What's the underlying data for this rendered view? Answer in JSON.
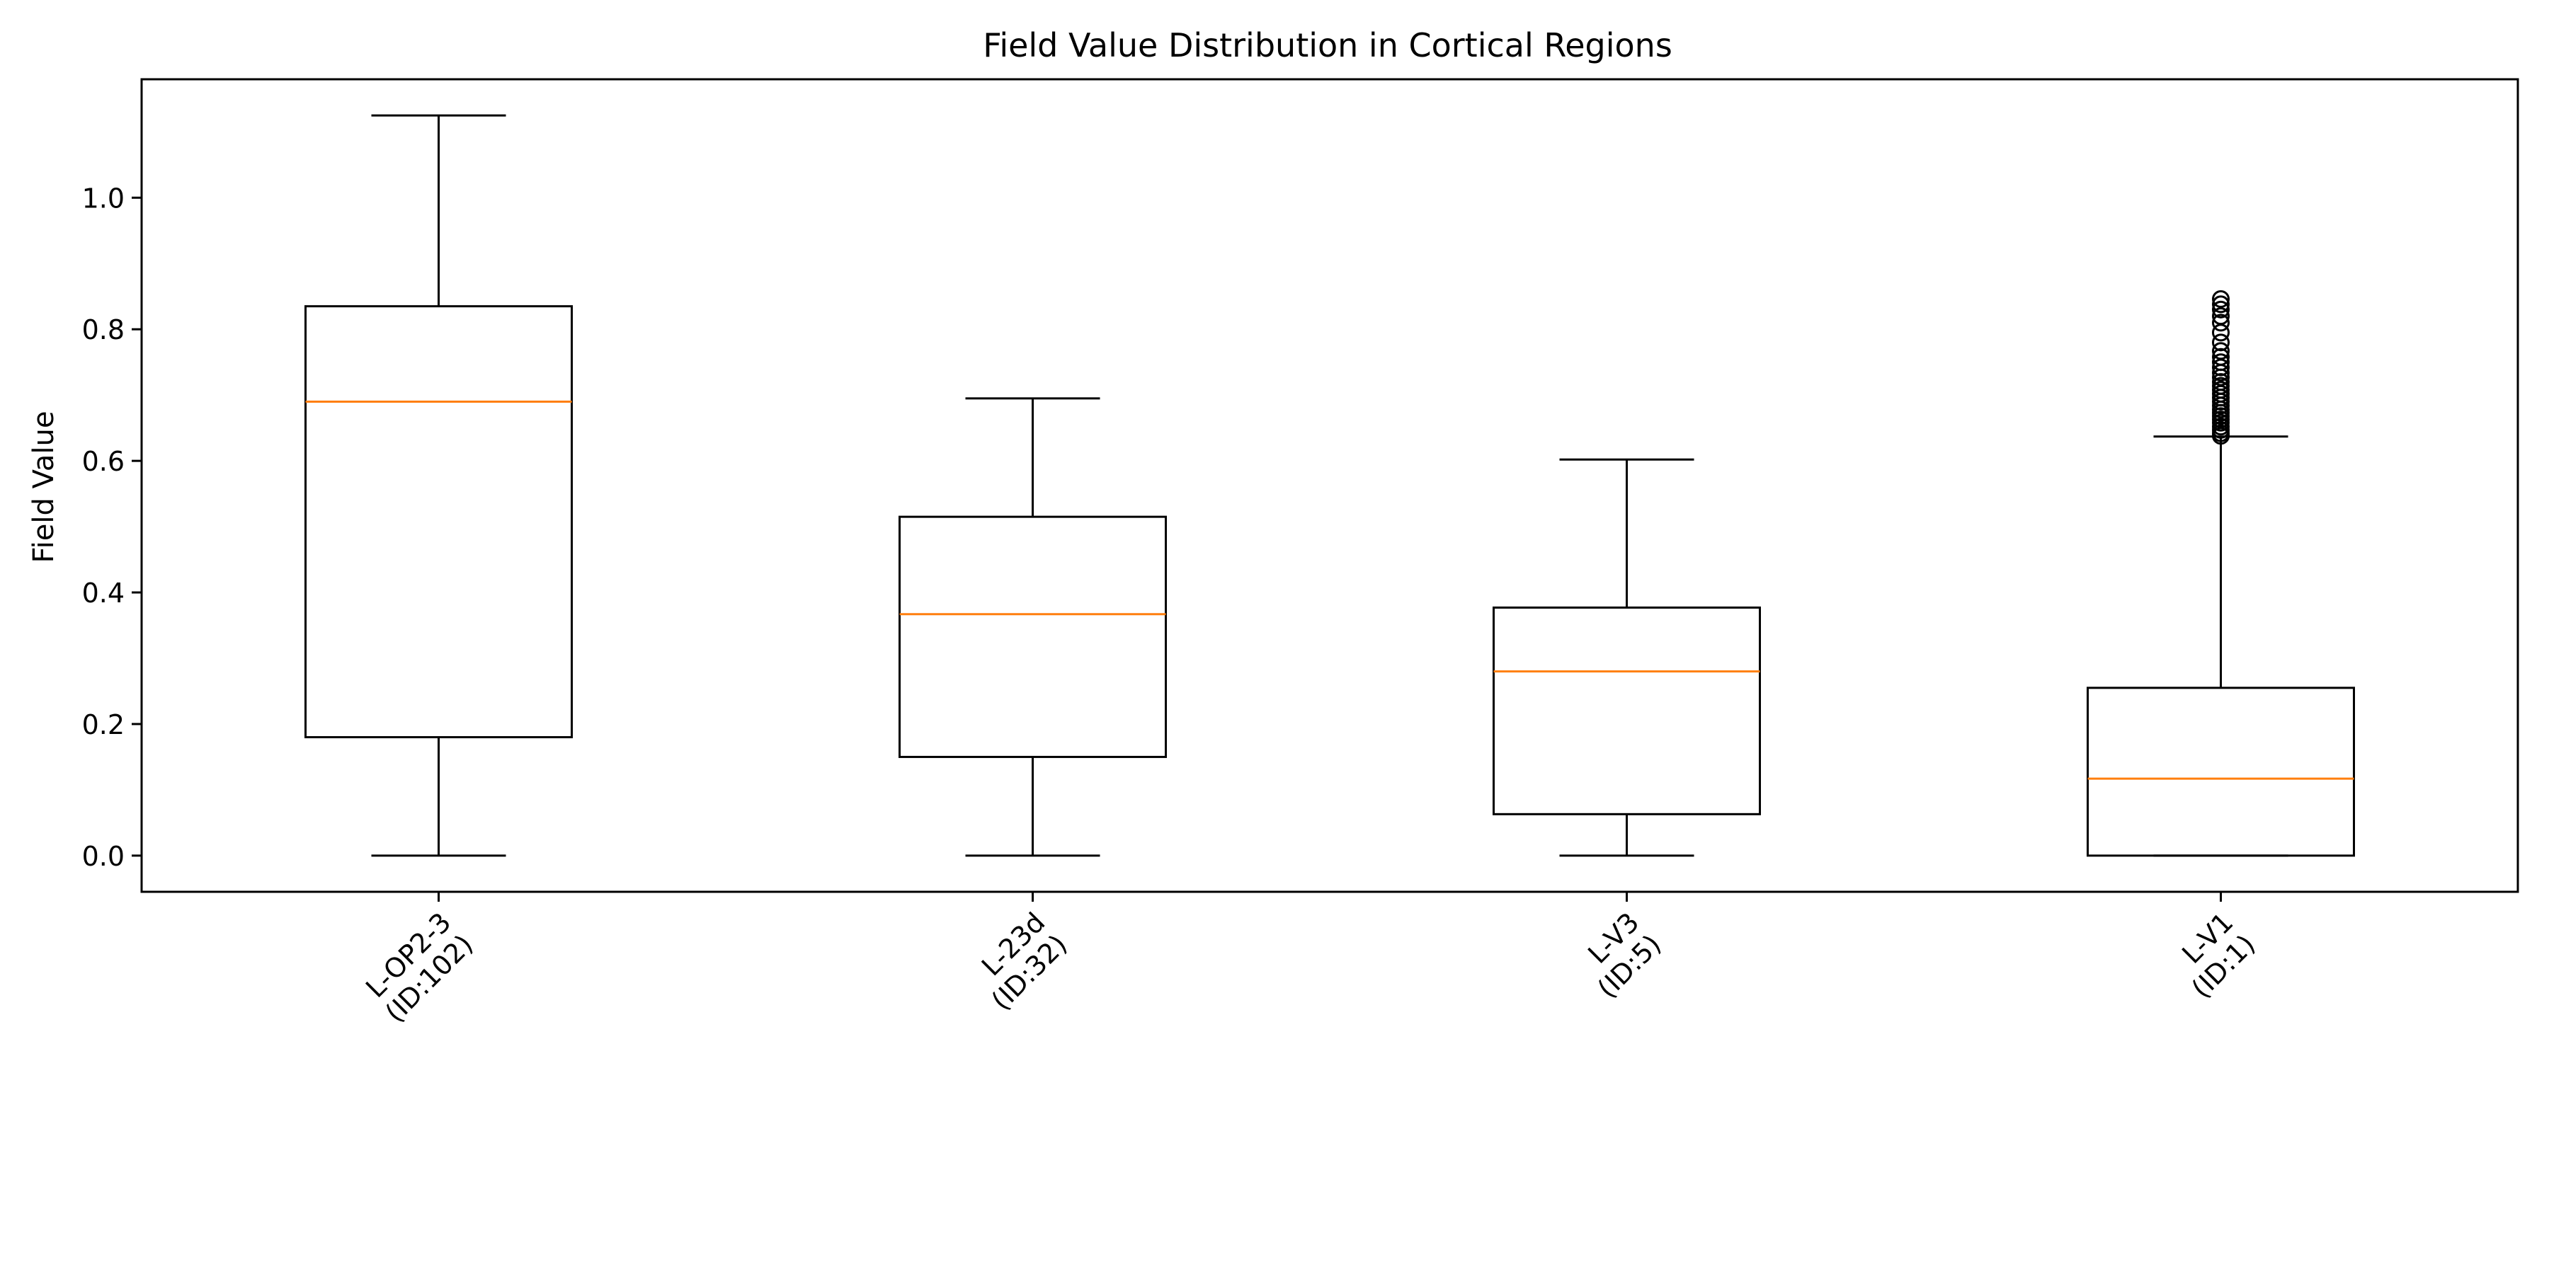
{
  "chart_data": {
    "type": "box",
    "title": "Field Value Distribution in Cortical Regions",
    "xlabel": "",
    "ylabel": "Field Value",
    "ylim": [
      -0.055,
      1.18
    ],
    "yticks": [
      0.0,
      0.2,
      0.4,
      0.6,
      0.8,
      1.0
    ],
    "ytick_labels": [
      "0.0",
      "0.2",
      "0.4",
      "0.6",
      "0.8",
      "1.0"
    ],
    "grid": false,
    "categories": [
      {
        "line1": "L-OP2-3",
        "line2": "(ID:102)"
      },
      {
        "line1": "L-23d",
        "line2": "(ID:32)"
      },
      {
        "line1": "L-V3",
        "line2": "(ID:5)"
      },
      {
        "line1": "L-V1",
        "line2": "(ID:1)"
      }
    ],
    "boxes": [
      {
        "whisker_low": 0.0,
        "q1": 0.18,
        "median": 0.69,
        "q3": 0.835,
        "whisker_high": 1.125,
        "outliers": []
      },
      {
        "whisker_low": 0.0,
        "q1": 0.15,
        "median": 0.367,
        "q3": 0.515,
        "whisker_high": 0.695,
        "outliers": []
      },
      {
        "whisker_low": 0.0,
        "q1": 0.063,
        "median": 0.28,
        "q3": 0.377,
        "whisker_high": 0.602,
        "outliers": []
      },
      {
        "whisker_low": 0.0,
        "q1": 0.0,
        "median": 0.117,
        "q3": 0.255,
        "whisker_high": 0.637,
        "outliers": [
          0.638,
          0.642,
          0.647,
          0.652,
          0.658,
          0.663,
          0.668,
          0.673,
          0.678,
          0.684,
          0.69,
          0.696,
          0.702,
          0.708,
          0.714,
          0.72,
          0.727,
          0.734,
          0.742,
          0.75,
          0.758,
          0.767,
          0.78,
          0.795,
          0.81,
          0.82,
          0.83,
          0.838,
          0.846
        ]
      }
    ],
    "colors": {
      "box": "#000000",
      "median": "#ff7f0e"
    }
  }
}
